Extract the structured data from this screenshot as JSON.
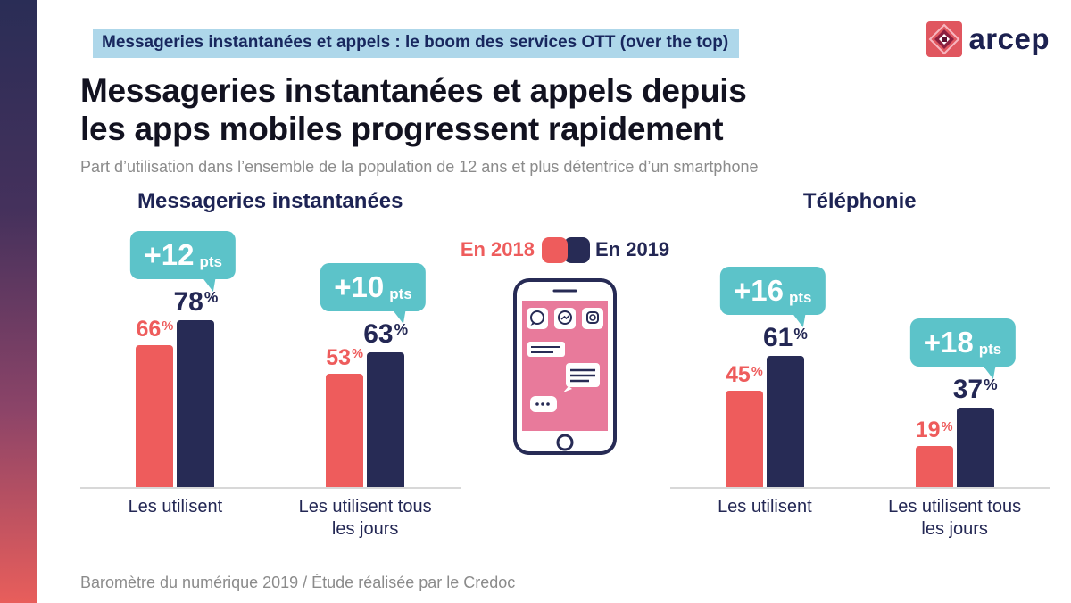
{
  "header": {
    "kicker": "Messageries instantanées et appels : le boom des services OTT (over the top)",
    "logo_text": "arcep",
    "title_line1": "Messageries instantanées et appels depuis",
    "title_line2": "les apps mobiles progressent rapidement",
    "subtitle": "Part d’utilisation dans l’ensemble de la population de 12 ans et plus détentrice d’un smartphone"
  },
  "legend": {
    "year1": "En 2018",
    "year2": "En 2019"
  },
  "footer": {
    "source": "Baromètre du numérique 2019 / Étude réalisée par le Credoc"
  },
  "colors": {
    "red": "#ee5c5c",
    "navy": "#272b55",
    "teal": "#5cc3c9",
    "pink_screen": "#e87a9b",
    "highlight_blue": "#aed7ea",
    "gray_text": "#8b8b8b"
  },
  "icons": {
    "phone_apps": [
      "whatsapp-icon",
      "messenger-icon",
      "instagram-icon"
    ]
  },
  "chart_data": [
    {
      "type": "bar",
      "title": "Messageries instantanées",
      "categories": [
        "Les utilisent",
        "Les utilisent tous les jours"
      ],
      "series": [
        {
          "name": "En 2018",
          "color": "#ee5c5c",
          "values": [
            66,
            53
          ]
        },
        {
          "name": "En 2019",
          "color": "#272b55",
          "values": [
            78,
            63
          ]
        }
      ],
      "annotations": [
        {
          "label": "+12",
          "unit": "pts"
        },
        {
          "label": "+10",
          "unit": "pts"
        }
      ],
      "unit": "%",
      "ylim": [
        0,
        100
      ],
      "legend_position": "center"
    },
    {
      "type": "bar",
      "title": "Téléphonie",
      "categories": [
        "Les utilisent",
        "Les utilisent tous les jours"
      ],
      "series": [
        {
          "name": "En 2018",
          "color": "#ee5c5c",
          "values": [
            45,
            19
          ]
        },
        {
          "name": "En 2019",
          "color": "#272b55",
          "values": [
            61,
            37
          ]
        }
      ],
      "annotations": [
        {
          "label": "+16",
          "unit": "pts"
        },
        {
          "label": "+18",
          "unit": "pts"
        }
      ],
      "unit": "%",
      "ylim": [
        0,
        100
      ],
      "legend_position": "center"
    }
  ]
}
